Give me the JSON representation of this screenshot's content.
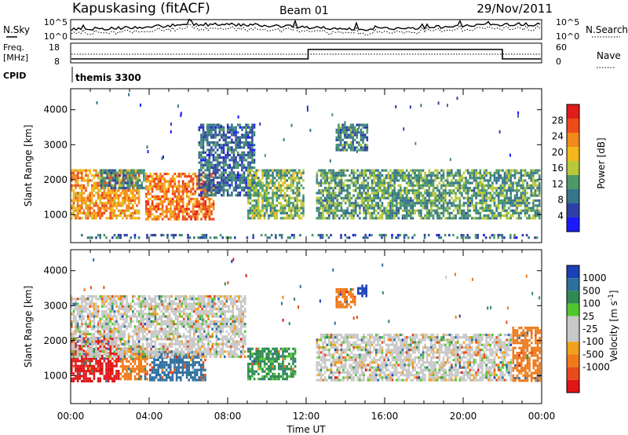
{
  "header": {
    "station": "Kapuskasing (fitACF)",
    "beam": "Beam 01",
    "date": "29/Nov/2011"
  },
  "noise_panel": {
    "left_label": "N.Sky",
    "left_ticks": [
      "10^5",
      "10^0"
    ],
    "right_ticks": [
      "10^5",
      "10^0"
    ],
    "right_label": "N.Search"
  },
  "freq_panel": {
    "left_label_line1": "Freq.",
    "left_label_line2": "[MHz]",
    "left_ticks": [
      "18",
      "8"
    ],
    "right_ticks": [
      "60",
      "0"
    ],
    "right_label": "Nave",
    "cpid_label": "CPID",
    "cpid_value": "themis 3300"
  },
  "colors": {
    "power_scale": [
      "#1a1aff",
      "#2f3fa8",
      "#37758a",
      "#4c9a68",
      "#b7c838",
      "#f4b81c",
      "#f08a1a",
      "#ee4a1a",
      "#e11c1c"
    ],
    "velocity_scale": [
      "#1b3fb5",
      "#2e6fa0",
      "#2f8a52",
      "#52c62e",
      "#c8c8c8",
      "#c8c8c8",
      "#f1a11e",
      "#ee7a1a",
      "#e84a1a",
      "#e01515"
    ]
  },
  "chart_data": [
    {
      "type": "heatmap",
      "panel": "power",
      "ylabel": "Slant Range [km]",
      "yticks": [
        "1000",
        "2000",
        "3000",
        "4000"
      ],
      "ylim": [
        200,
        4600
      ],
      "xlim": [
        0,
        24
      ],
      "colorbar_label": "Power [dB]",
      "colorbar_ticks": [
        "4",
        "8",
        "12",
        "16",
        "20",
        "24",
        "28"
      ],
      "colorbar_range": [
        0,
        32
      ],
      "echo_regions": [
        {
          "t0": 0.0,
          "t1": 3.6,
          "r0": 800,
          "r1": 2300,
          "value": 22
        },
        {
          "t0": 1.5,
          "t1": 3.8,
          "r0": 1700,
          "r1": 2300,
          "value": 10
        },
        {
          "t0": 3.8,
          "t1": 7.4,
          "r0": 800,
          "r1": 2200,
          "value": 24
        },
        {
          "t0": 6.5,
          "t1": 9.5,
          "r0": 1500,
          "r1": 3600,
          "value": 8
        },
        {
          "t0": 9.0,
          "t1": 12.0,
          "r0": 800,
          "r1": 2300,
          "value": 14
        },
        {
          "t0": 13.5,
          "t1": 15.2,
          "r0": 2800,
          "r1": 3600,
          "value": 10
        },
        {
          "t0": 12.5,
          "t1": 24.0,
          "r0": 800,
          "r1": 2300,
          "value": 12
        },
        {
          "t0": 0.0,
          "t1": 24.0,
          "r0": 250,
          "r1": 450,
          "value": 8
        }
      ]
    },
    {
      "type": "heatmap",
      "panel": "velocity",
      "ylabel": "Slant Range [km]",
      "yticks": [
        "1000",
        "2000",
        "3000",
        "4000"
      ],
      "ylim": [
        200,
        4600
      ],
      "xlim": [
        0,
        24
      ],
      "xticks": [
        "00:00",
        "04:00",
        "08:00",
        "12:00",
        "16:00",
        "20:00",
        "00:00"
      ],
      "xlabel": "Time UT",
      "colorbar_label": "Velocity [m s^-1]",
      "colorbar_ticks": [
        "1000",
        "500",
        "100",
        "25",
        "-25",
        "-100",
        "-500",
        "-1000"
      ],
      "echo_regions": [
        {
          "t0": 0.0,
          "t1": 2.5,
          "r0": 800,
          "r1": 2100,
          "value": -900
        },
        {
          "t0": 2.5,
          "t1": 4.0,
          "r0": 800,
          "r1": 1800,
          "value": -200
        },
        {
          "t0": 4.0,
          "t1": 7.0,
          "r0": 800,
          "r1": 1700,
          "value": 400
        },
        {
          "t0": 0.0,
          "t1": 9.0,
          "r0": 1500,
          "r1": 3300,
          "value": 0
        },
        {
          "t0": 9.0,
          "t1": 11.5,
          "r0": 800,
          "r1": 1800,
          "value": 80
        },
        {
          "t0": 13.5,
          "t1": 14.6,
          "r0": 2900,
          "r1": 3500,
          "value": -150
        },
        {
          "t0": 14.6,
          "t1": 15.2,
          "r0": 3200,
          "r1": 3600,
          "value": 800
        },
        {
          "t0": 12.5,
          "t1": 22.5,
          "r0": 800,
          "r1": 2200,
          "value": 0
        },
        {
          "t0": 22.5,
          "t1": 24.0,
          "r0": 800,
          "r1": 2400,
          "value": -200
        }
      ]
    }
  ]
}
